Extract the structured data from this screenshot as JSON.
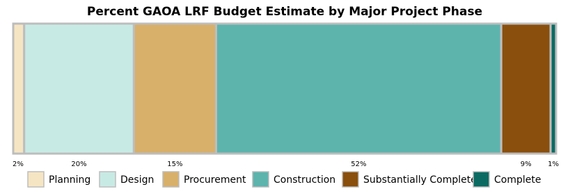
{
  "chart_data": {
    "type": "stacked-bar",
    "title": "Percent GAOA LRF Budget Estimate by Major Project Phase",
    "series": [
      {
        "name": "Planning",
        "color": "#f6e5c2",
        "values": [
          2
        ],
        "value_labels": [
          "2%"
        ]
      },
      {
        "name": "Design",
        "color": "#c8eae4",
        "values": [
          20
        ],
        "value_labels": [
          "20%"
        ]
      },
      {
        "name": "Procurement",
        "color": "#d8b06a",
        "values": [
          15
        ],
        "value_labels": [
          "15%"
        ]
      },
      {
        "name": "Construction",
        "color": "#5cb4ad",
        "values": [
          52
        ],
        "value_labels": [
          "52%"
        ]
      },
      {
        "name": "Substantially Complete",
        "color": "#8a4f0c",
        "values": [
          9
        ],
        "value_labels": [
          "9%"
        ]
      },
      {
        "name": "Complete",
        "color": "#0b6b62",
        "values": [
          1
        ],
        "value_labels": [
          "1%"
        ]
      }
    ]
  }
}
